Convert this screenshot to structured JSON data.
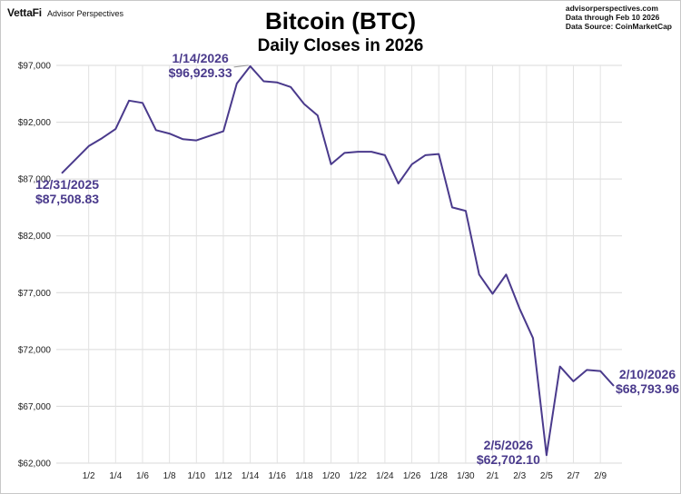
{
  "header": {
    "logo": "VettaFi",
    "logo_sub": "Advisor Perspectives",
    "source_lines": [
      "advisorperspectives.com",
      "Data through Feb 10 2026",
      "Data Source: CoinMarketCap"
    ]
  },
  "line_color": "#4a3a8c",
  "chart_data": {
    "type": "line",
    "title": "Bitcoin (BTC)",
    "subtitle": "Daily Closes in 2026",
    "xlabel": "",
    "ylabel": "",
    "ylim": [
      62000,
      97000
    ],
    "yticks": [
      62000,
      67000,
      72000,
      77000,
      82000,
      87000,
      92000,
      97000
    ],
    "ytick_labels": [
      "$62,000",
      "$67,000",
      "$72,000",
      "$77,000",
      "$82,000",
      "$87,000",
      "$92,000",
      "$97,000"
    ],
    "xtick_labels": [
      "1/2",
      "1/4",
      "1/6",
      "1/8",
      "1/10",
      "1/12",
      "1/14",
      "1/16",
      "1/18",
      "1/20",
      "1/22",
      "1/24",
      "1/26",
      "1/28",
      "1/30",
      "2/1",
      "2/3",
      "2/5",
      "2/7",
      "2/9"
    ],
    "xtick_indices": [
      2,
      4,
      6,
      8,
      10,
      12,
      14,
      16,
      18,
      20,
      22,
      24,
      26,
      28,
      30,
      32,
      34,
      36,
      38,
      40
    ],
    "grid": true,
    "series": [
      {
        "name": "",
        "dates": [
          "12/31",
          "1/1",
          "1/2",
          "1/3",
          "1/4",
          "1/5",
          "1/6",
          "1/7",
          "1/8",
          "1/9",
          "1/10",
          "1/11",
          "1/12",
          "1/13",
          "1/14",
          "1/15",
          "1/16",
          "1/17",
          "1/18",
          "1/19",
          "1/20",
          "1/21",
          "1/22",
          "1/23",
          "1/24",
          "1/25",
          "1/26",
          "1/27",
          "1/28",
          "1/29",
          "1/30",
          "1/31",
          "2/1",
          "2/2",
          "2/3",
          "2/4",
          "2/5",
          "2/6",
          "2/7",
          "2/8",
          "2/9",
          "2/10"
        ],
        "values": [
          87508.83,
          88700,
          89900,
          90600,
          91400,
          93900,
          93700,
          91300,
          91000,
          90500,
          90400,
          90800,
          91200,
          95400,
          96929.33,
          95600,
          95500,
          95100,
          93600,
          92600,
          88300,
          89300,
          89400,
          89400,
          89100,
          86600,
          88300,
          89100,
          89200,
          84500,
          84200,
          78600,
          76900,
          78600,
          75600,
          73000,
          62702.1,
          70500,
          69200,
          70200,
          70100,
          68793.96
        ]
      }
    ],
    "annotations": [
      {
        "label_date": "12/31/2025",
        "label_value": "$87,508.83"
      },
      {
        "label_date": "1/14/2026",
        "label_value": "$96,929.33"
      },
      {
        "label_date": "2/5/2026",
        "label_value": "$62,702.10"
      },
      {
        "label_date": "2/10/2026",
        "label_value": "$68,793.96"
      }
    ]
  }
}
